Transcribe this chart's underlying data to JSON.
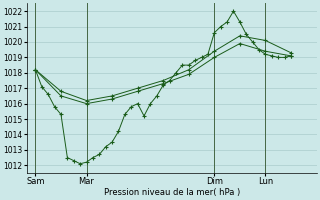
{
  "xlabel": "Pression niveau de la mer( hPa )",
  "background_color": "#cce8e8",
  "grid_color": "#aacccc",
  "line_color": "#1a5c1a",
  "vline_color": "#446644",
  "ylim": [
    1011.5,
    1022.5
  ],
  "xtick_labels": [
    "Sam",
    "Mar",
    "Dim",
    "Lun"
  ],
  "xtick_positions": [
    0,
    48,
    168,
    216
  ],
  "vlines": [
    0,
    48,
    168,
    216
  ],
  "xlim": [
    -8,
    264
  ],
  "line1_x": [
    0,
    6,
    12,
    18,
    24,
    30,
    36,
    42,
    48,
    54,
    60,
    66,
    72,
    78,
    84,
    90,
    96,
    102,
    108,
    114,
    120,
    126,
    132,
    138,
    144,
    150,
    156,
    162,
    168,
    174,
    180,
    186,
    192,
    198,
    204,
    210,
    216,
    222,
    228,
    234,
    240
  ],
  "line1_y": [
    1018.2,
    1017.1,
    1016.6,
    1015.8,
    1015.3,
    1012.5,
    1012.3,
    1012.1,
    1012.2,
    1012.5,
    1012.7,
    1013.2,
    1013.5,
    1014.2,
    1015.3,
    1015.8,
    1016.0,
    1015.2,
    1016.0,
    1016.5,
    1017.2,
    1017.5,
    1018.0,
    1018.5,
    1018.5,
    1018.8,
    1019.0,
    1019.2,
    1020.6,
    1021.0,
    1021.3,
    1022.0,
    1021.3,
    1020.5,
    1020.0,
    1019.5,
    1019.2,
    1019.1,
    1019.0,
    1019.0,
    1019.1
  ],
  "line2_x": [
    0,
    24,
    48,
    72,
    96,
    120,
    144,
    168,
    192,
    216,
    240
  ],
  "line2_y": [
    1018.2,
    1016.8,
    1016.2,
    1016.5,
    1017.0,
    1017.5,
    1018.2,
    1019.4,
    1020.4,
    1020.1,
    1019.3
  ],
  "line3_x": [
    0,
    24,
    48,
    72,
    96,
    120,
    144,
    168,
    192,
    216,
    240
  ],
  "line3_y": [
    1018.2,
    1016.5,
    1016.0,
    1016.3,
    1016.8,
    1017.3,
    1017.9,
    1019.0,
    1019.9,
    1019.4,
    1019.1
  ]
}
